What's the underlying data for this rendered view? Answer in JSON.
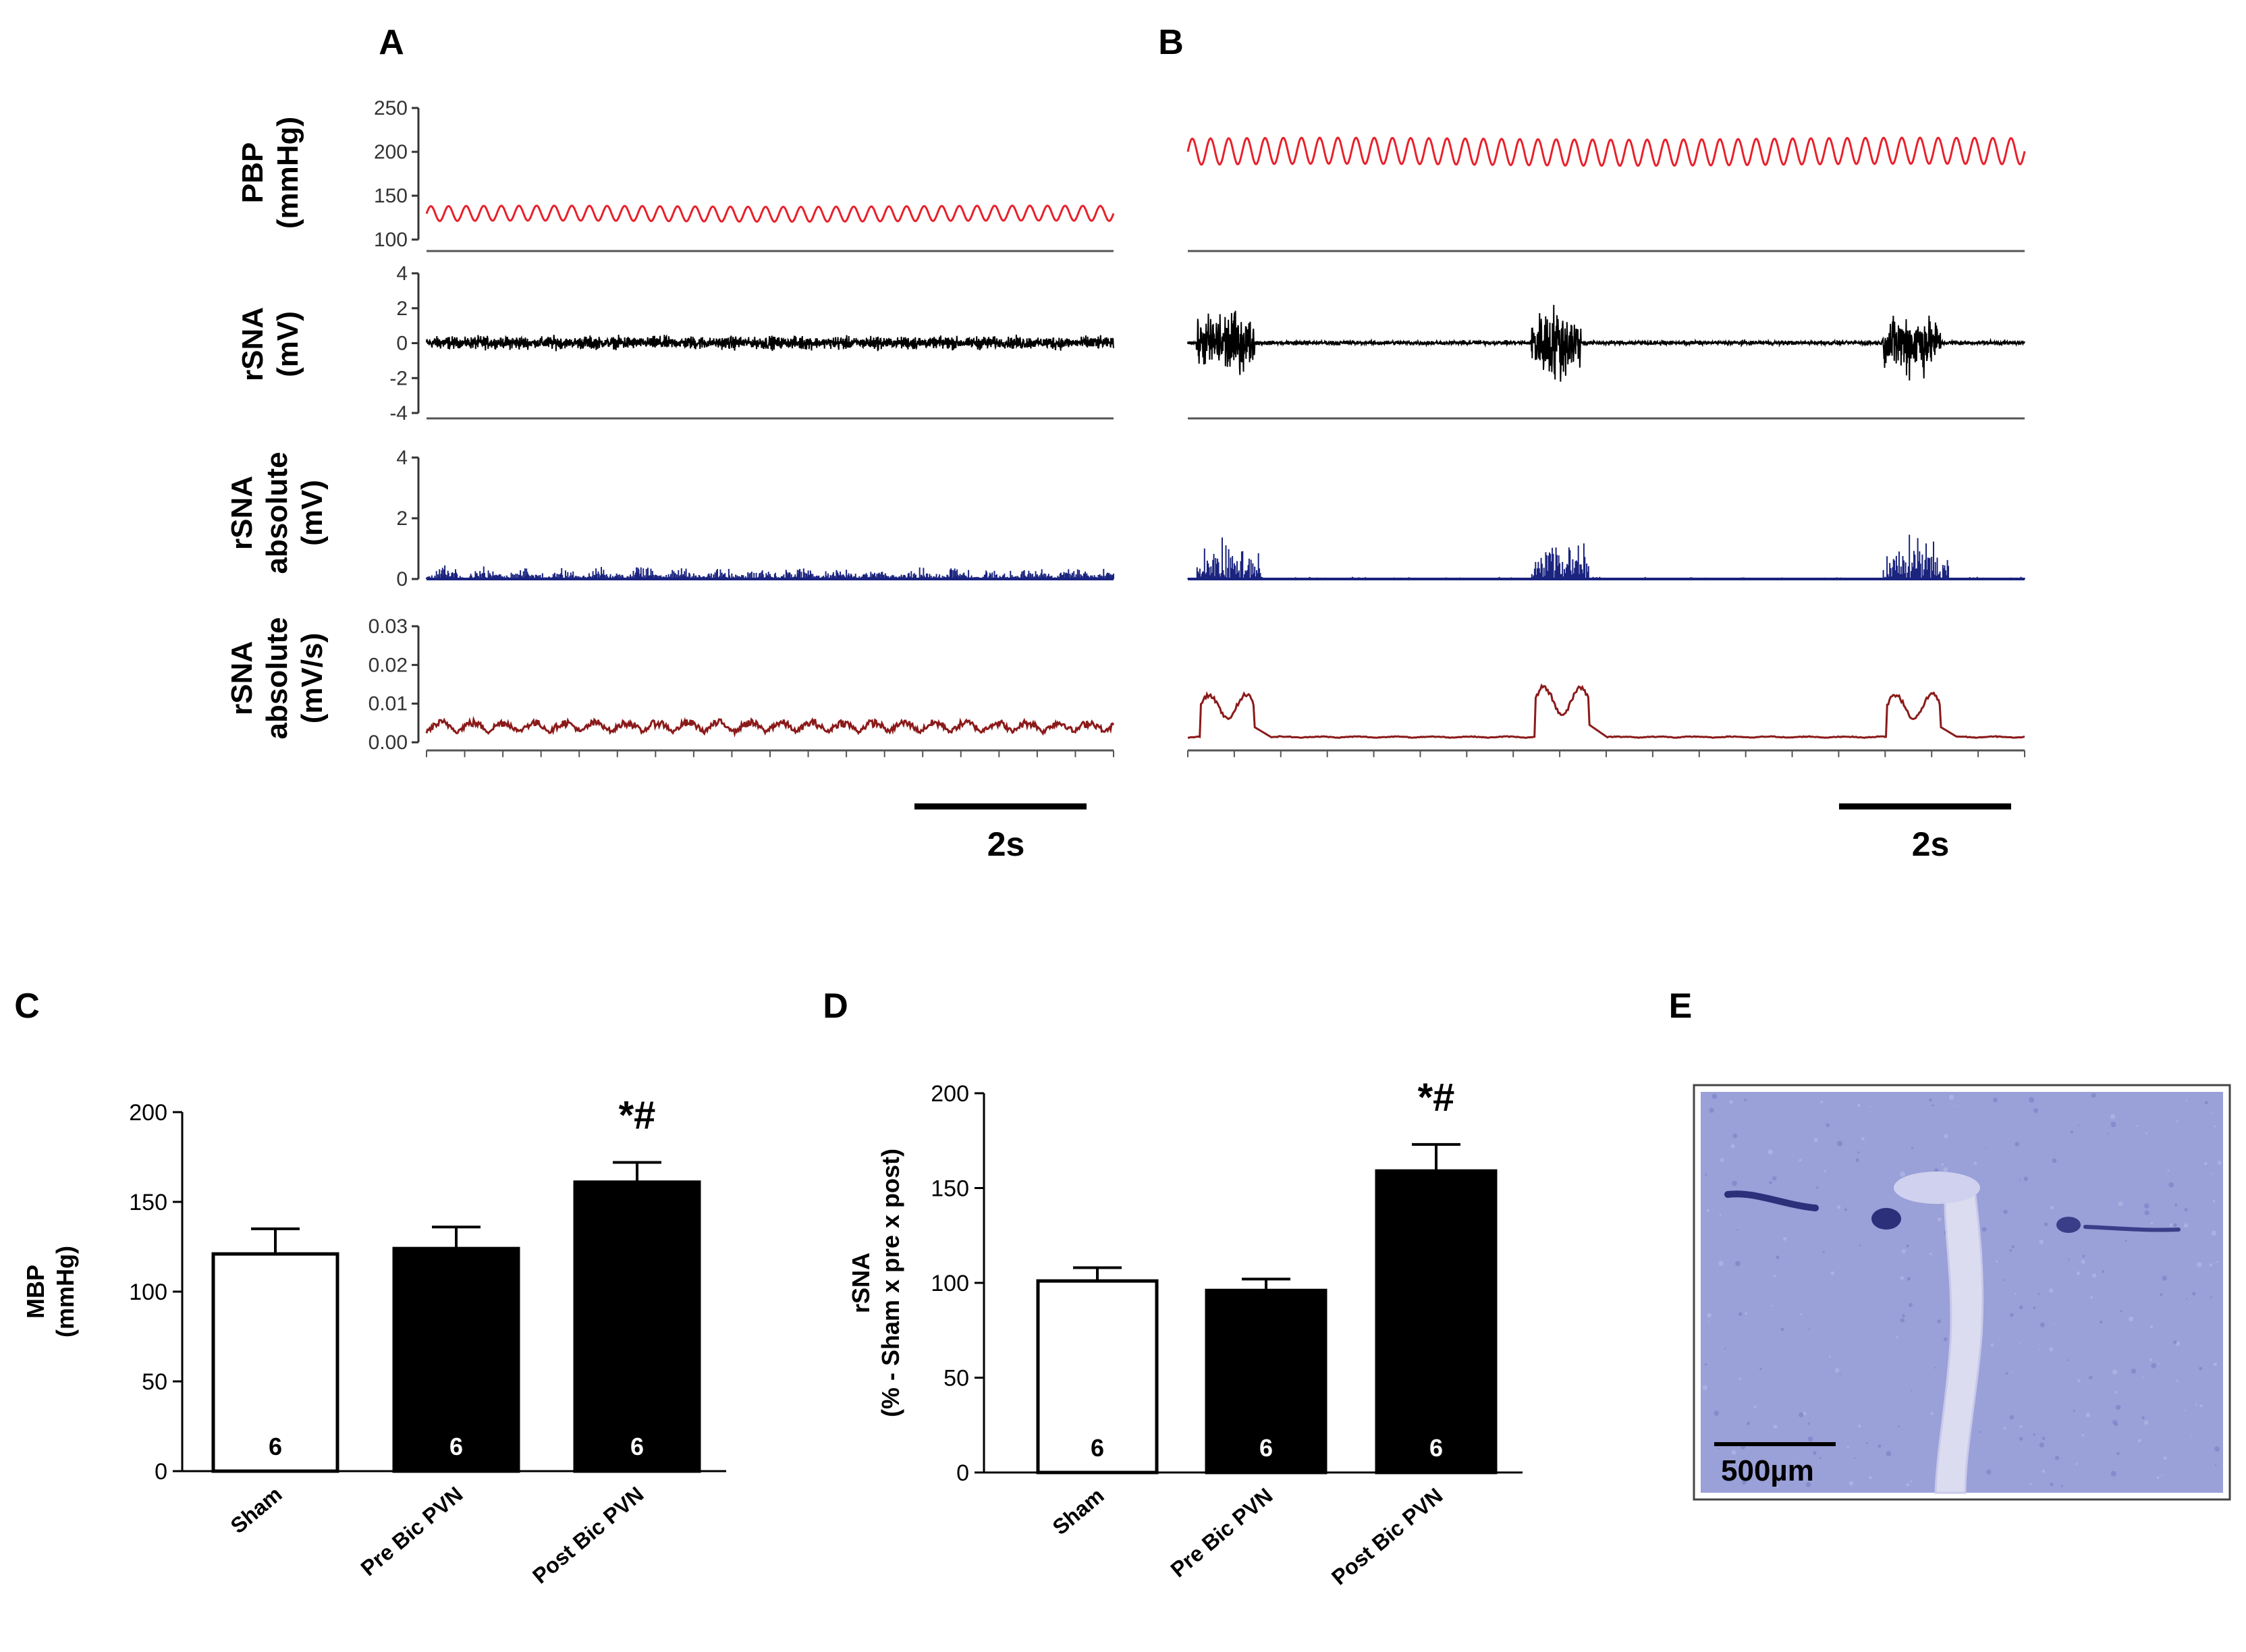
{
  "panel_labels": {
    "a": "A",
    "b": "B",
    "c": "C",
    "d": "D",
    "e": "E"
  },
  "traces": {
    "row_labels": {
      "pbp": [
        "PBP",
        "(mmHg)"
      ],
      "rsna": [
        "rSNA",
        "(mV)"
      ],
      "rsna_abs": [
        "rSNA",
        "absolute",
        "(mV)"
      ],
      "rsna_abs_int": [
        "rSNA",
        "absolute",
        "(mV/s)"
      ]
    },
    "pbp_ticks": [
      "250",
      "200",
      "150",
      "100"
    ],
    "rsna_ticks": [
      "4",
      "2",
      "0",
      "-2",
      "-4"
    ],
    "rsna_abs_ticks": [
      "4",
      "2",
      "0"
    ],
    "rsna_abs_int_ticks": [
      "0.03",
      "0.02",
      "0.01",
      "0.00"
    ],
    "scale_bar_label": "2s",
    "colors": {
      "pbp": "#e8202a",
      "rsna": "#000000",
      "rsna_abs": "#1a237e",
      "rsna_abs_int": "#8b1a1a"
    },
    "condition_a": {
      "pbp_min": 118,
      "pbp_max": 138
    },
    "condition_b": {
      "pbp_min": 180,
      "pbp_max": 215
    }
  },
  "chart_data": [
    {
      "type": "bar",
      "panel": "C",
      "categories": [
        "Sham",
        "Pre Bic PVN",
        "Post Bic PVN"
      ],
      "values": [
        121,
        124,
        161
      ],
      "errors": [
        14,
        12,
        11
      ],
      "n_labels": [
        "6",
        "6",
        "6"
      ],
      "fills": [
        "#ffffff",
        "#000000",
        "#000000"
      ],
      "significance": [
        "",
        "",
        "*#"
      ],
      "ylabel": [
        "MBP",
        "(mmHg)"
      ],
      "ylim": [
        0,
        200
      ],
      "yticks": [
        "0",
        "50",
        "100",
        "150",
        "200"
      ]
    },
    {
      "type": "bar",
      "panel": "D",
      "categories": [
        "Sham",
        "Pre Bic PVN",
        "Post Bic PVN"
      ],
      "values": [
        101,
        96,
        159
      ],
      "errors": [
        7,
        6,
        14
      ],
      "n_labels": [
        "6",
        "6",
        "6"
      ],
      "fills": [
        "#ffffff",
        "#000000",
        "#000000"
      ],
      "significance": [
        "",
        "",
        "*#"
      ],
      "ylabel": [
        "rSNA",
        "(% - Sham x pre x post)"
      ],
      "ylim": [
        0,
        200
      ],
      "yticks": [
        "0",
        "50",
        "100",
        "150",
        "200"
      ]
    }
  ],
  "histology": {
    "scale_label": "500µm",
    "bg_color": "#9aa0d8"
  }
}
